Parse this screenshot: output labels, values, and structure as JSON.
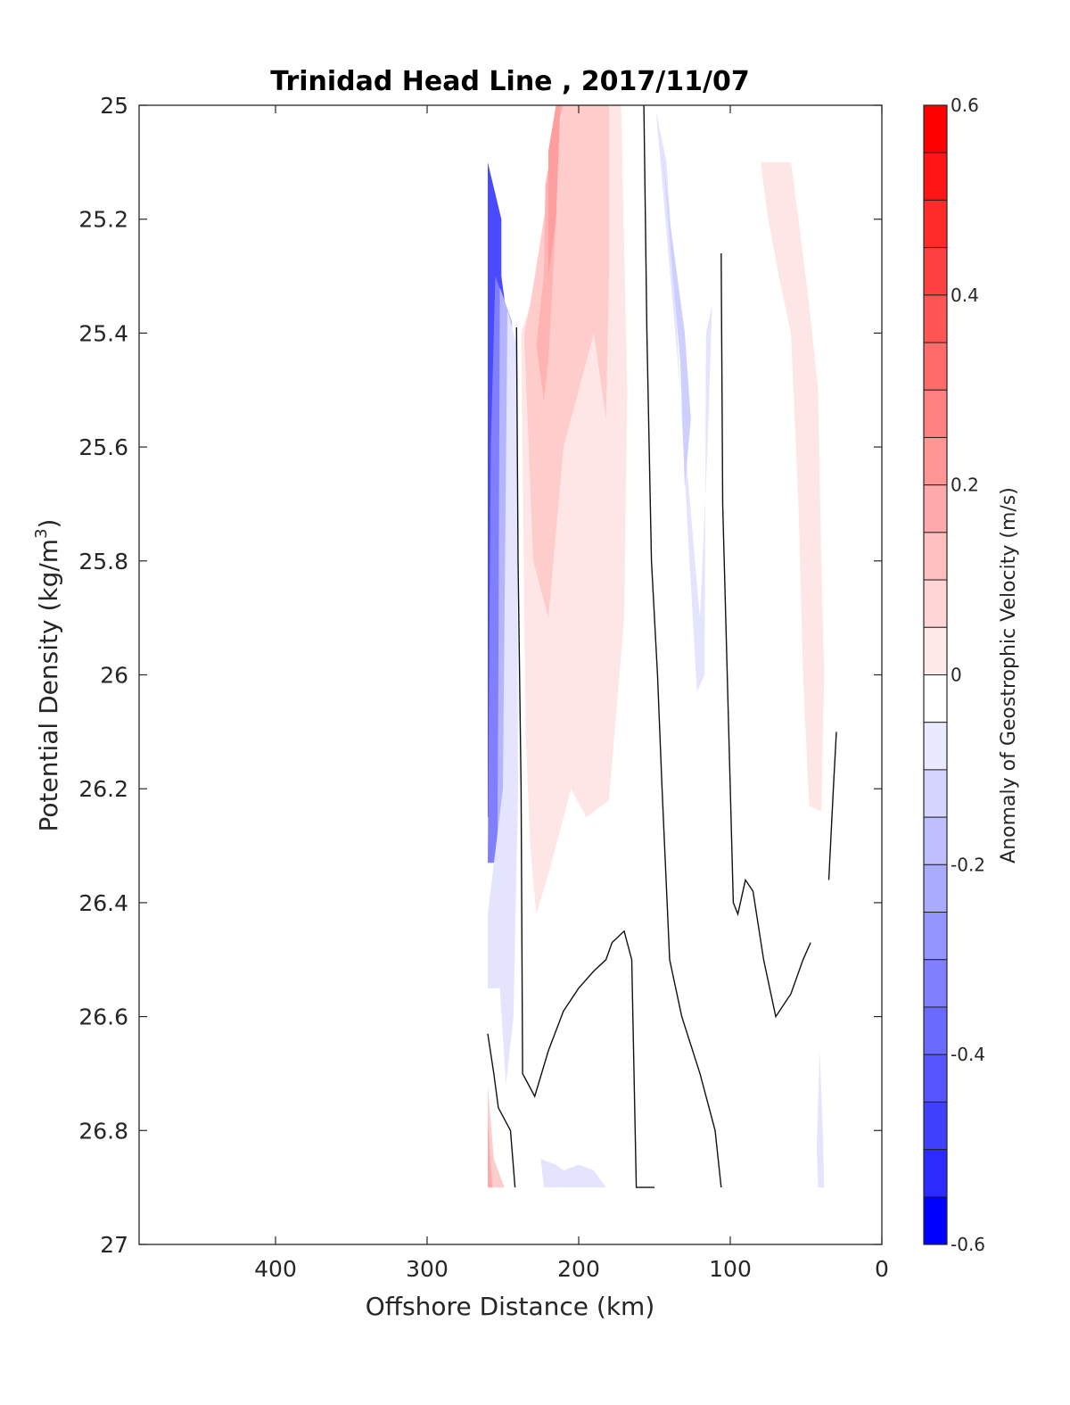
{
  "chart_data": {
    "type": "heatmap",
    "subtype": "filled-contour section",
    "title": "Trinidad Head Line , 2017/11/07",
    "xlabel": "Offshore Distance (km)",
    "ylabel": "Potential Density (kg/m^3)",
    "ylabel_main": "Potential Density (kg/m",
    "ylabel_sup": "3",
    "ylabel_close": ")",
    "xlim": [
      490,
      0
    ],
    "x_reversed": true,
    "ylim": [
      25,
      27
    ],
    "y_reversed": true,
    "xticks": [
      400,
      300,
      200,
      100,
      0
    ],
    "xtick_labels": [
      "400",
      "300",
      "200",
      "100",
      "0"
    ],
    "yticks": [
      25,
      25.2,
      25.4,
      25.6,
      25.8,
      26,
      26.2,
      26.4,
      26.6,
      26.8,
      27
    ],
    "ytick_labels": [
      "25",
      "25.2",
      "25.4",
      "25.6",
      "25.8",
      "26",
      "26.2",
      "26.4",
      "26.6",
      "26.8",
      "27"
    ],
    "grid": false,
    "colorbar": {
      "label": "Anomaly of Geostrophic Velocity (m/s)",
      "range": [
        -0.6,
        0.6
      ],
      "step": 0.05,
      "ticks": [
        0.6,
        0.4,
        0.2,
        0,
        -0.2,
        -0.4,
        -0.6
      ],
      "tick_labels": [
        "0.6",
        "0.4",
        "0.2",
        "0",
        "-0.2",
        "-0.4",
        "-0.6"
      ],
      "placement": "right",
      "levels": [
        {
          "from": 0.55,
          "to": 0.6,
          "color": "#ff0000"
        },
        {
          "from": 0.5,
          "to": 0.55,
          "color": "#ff1515"
        },
        {
          "from": 0.45,
          "to": 0.5,
          "color": "#ff2b2b"
        },
        {
          "from": 0.4,
          "to": 0.45,
          "color": "#ff4040"
        },
        {
          "from": 0.35,
          "to": 0.4,
          "color": "#ff5555"
        },
        {
          "from": 0.3,
          "to": 0.35,
          "color": "#ff6a6a"
        },
        {
          "from": 0.25,
          "to": 0.3,
          "color": "#ff8080"
        },
        {
          "from": 0.2,
          "to": 0.25,
          "color": "#ff9595"
        },
        {
          "from": 0.15,
          "to": 0.2,
          "color": "#ffaaaa"
        },
        {
          "from": 0.1,
          "to": 0.15,
          "color": "#ffbfbf"
        },
        {
          "from": 0.05,
          "to": 0.1,
          "color": "#ffd5d5"
        },
        {
          "from": 0.0,
          "to": 0.05,
          "color": "#ffeaea"
        },
        {
          "from": -0.0,
          "to": 0.0,
          "color": "#ffffff"
        },
        {
          "from": -0.05,
          "to": 0.0,
          "color": "#ffffff"
        },
        {
          "from": -0.1,
          "to": -0.05,
          "color": "#eaeaff"
        },
        {
          "from": -0.15,
          "to": -0.1,
          "color": "#d5d5ff"
        },
        {
          "from": -0.2,
          "to": -0.15,
          "color": "#bfbfff"
        },
        {
          "from": -0.25,
          "to": -0.2,
          "color": "#aaaaff"
        },
        {
          "from": -0.3,
          "to": -0.25,
          "color": "#9595ff"
        },
        {
          "from": -0.35,
          "to": -0.3,
          "color": "#8080ff"
        },
        {
          "from": -0.4,
          "to": -0.35,
          "color": "#6a6aff"
        },
        {
          "from": -0.45,
          "to": -0.4,
          "color": "#5555ff"
        },
        {
          "from": -0.5,
          "to": -0.45,
          "color": "#4040ff"
        },
        {
          "from": -0.55,
          "to": -0.5,
          "color": "#2b2bff"
        },
        {
          "from": -0.6,
          "to": -0.55,
          "color": "#0000ff"
        }
      ]
    },
    "regions": [
      {
        "name": "blue-core-offshore",
        "value": -0.45,
        "color": "#4a4aff",
        "points": [
          [
            260,
            25.1
          ],
          [
            251,
            25.2
          ],
          [
            251,
            25.3
          ],
          [
            247,
            25.38
          ],
          [
            250,
            25.8
          ],
          [
            255,
            26.2
          ],
          [
            258,
            26.25
          ],
          [
            260,
            26.25
          ]
        ]
      },
      {
        "name": "blue-band-2",
        "value": -0.3,
        "color": "#8080ff",
        "points": [
          [
            255,
            25.3
          ],
          [
            247,
            25.36
          ],
          [
            244,
            25.45
          ],
          [
            246,
            25.9
          ],
          [
            250,
            26.33
          ],
          [
            260,
            26.33
          ],
          [
            258,
            25.6
          ]
        ]
      },
      {
        "name": "blue-band-3",
        "value": -0.2,
        "color": "#b5b5ff",
        "points": [
          [
            252,
            25.32
          ],
          [
            244,
            25.38
          ],
          [
            243,
            25.7
          ],
          [
            244,
            26.3
          ],
          [
            249,
            26.52
          ],
          [
            254,
            26.5
          ],
          [
            253,
            26.0
          ]
        ]
      },
      {
        "name": "blue-band-4",
        "value": -0.08,
        "color": "#e4e4ff",
        "points": [
          [
            247,
            25.36
          ],
          [
            241,
            25.42
          ],
          [
            240,
            26.2
          ],
          [
            243,
            26.6
          ],
          [
            248,
            26.72
          ],
          [
            252,
            26.55
          ],
          [
            260,
            26.55
          ],
          [
            260,
            26.42
          ],
          [
            250,
            26.2
          ]
        ]
      },
      {
        "name": "red-outer",
        "value": 0.05,
        "color": "#ffe6e6",
        "points": [
          [
            232,
            25.35
          ],
          [
            238,
            25.4
          ],
          [
            235,
            26.1
          ],
          [
            232,
            26.3
          ],
          [
            228,
            26.42
          ],
          [
            220,
            26.35
          ],
          [
            205,
            26.2
          ],
          [
            195,
            26.25
          ],
          [
            180,
            26.22
          ],
          [
            170,
            25.9
          ],
          [
            168,
            25.5
          ],
          [
            172,
            25.0
          ],
          [
            205,
            25.0
          ],
          [
            215,
            25.0
          ],
          [
            220,
            25.2
          ]
        ]
      },
      {
        "name": "red-mid",
        "value": 0.1,
        "color": "#ffcccc",
        "points": [
          [
            232,
            25.35
          ],
          [
            236,
            25.4
          ],
          [
            230,
            25.8
          ],
          [
            220,
            25.9
          ],
          [
            210,
            25.6
          ],
          [
            200,
            25.5
          ],
          [
            190,
            25.4
          ],
          [
            182,
            25.55
          ],
          [
            180,
            25.3
          ],
          [
            180,
            25.0
          ],
          [
            210,
            25.0
          ],
          [
            220,
            25.15
          ],
          [
            226,
            25.25
          ]
        ]
      },
      {
        "name": "red-inner",
        "value": 0.15,
        "color": "#ffb3b3",
        "points": [
          [
            218,
            25.08
          ],
          [
            222,
            25.14
          ],
          [
            223,
            25.3
          ],
          [
            228,
            25.42
          ],
          [
            223,
            25.52
          ],
          [
            220,
            25.45
          ],
          [
            215,
            25.2
          ],
          [
            213,
            25.0
          ],
          [
            210,
            25.0
          ]
        ]
      },
      {
        "name": "red-core",
        "value": 0.2,
        "color": "#ff9e9e",
        "points": [
          [
            215,
            25.0
          ],
          [
            220,
            25.08
          ],
          [
            220,
            25.3
          ],
          [
            215,
            25.2
          ],
          [
            212,
            25.0
          ]
        ]
      },
      {
        "name": "blue-nearshore-1",
        "value": -0.08,
        "color": "#e4e4ff",
        "points": [
          [
            149,
            25.01
          ],
          [
            142,
            25.1
          ],
          [
            135,
            25.4
          ],
          [
            128,
            25.75
          ],
          [
            122,
            26.03
          ],
          [
            117,
            26.0
          ],
          [
            116,
            25.4
          ],
          [
            112,
            25.35
          ],
          [
            115,
            25.6
          ],
          [
            120,
            25.9
          ]
        ]
      },
      {
        "name": "blue-nearshore-2",
        "value": -0.12,
        "color": "#cfcfff",
        "points": [
          [
            145,
            25.07
          ],
          [
            140,
            25.2
          ],
          [
            130,
            25.4
          ],
          [
            126,
            25.55
          ],
          [
            130,
            25.67
          ],
          [
            133,
            25.45
          ],
          [
            138,
            25.3
          ]
        ]
      },
      {
        "name": "red-nearshore",
        "value": 0.05,
        "color": "#ffe6e6",
        "points": [
          [
            80,
            25.1
          ],
          [
            60,
            25.1
          ],
          [
            55,
            25.2
          ],
          [
            48,
            25.35
          ],
          [
            42,
            25.5
          ],
          [
            40,
            25.8
          ],
          [
            38,
            26.0
          ],
          [
            40,
            26.24
          ],
          [
            48,
            26.23
          ],
          [
            52,
            26.0
          ],
          [
            55,
            25.7
          ],
          [
            60,
            25.4
          ],
          [
            68,
            25.3
          ],
          [
            75,
            25.2
          ]
        ]
      },
      {
        "name": "blue-deep-1",
        "value": -0.08,
        "color": "#e4e4ff",
        "points": [
          [
            225,
            26.85
          ],
          [
            215,
            26.86
          ],
          [
            210,
            26.87
          ],
          [
            200,
            26.86
          ],
          [
            190,
            26.87
          ],
          [
            182,
            26.9
          ],
          [
            223,
            26.9
          ]
        ]
      },
      {
        "name": "blue-deep-2",
        "value": -0.08,
        "color": "#e4e4ff",
        "points": [
          [
            41,
            26.66
          ],
          [
            43,
            26.83
          ],
          [
            42,
            26.9
          ],
          [
            38,
            26.9
          ],
          [
            39,
            26.8
          ]
        ]
      },
      {
        "name": "red-deep",
        "value": 0.1,
        "color": "#ffcccc",
        "points": [
          [
            260,
            26.72
          ],
          [
            256,
            26.85
          ],
          [
            249,
            26.9
          ],
          [
            260,
            26.9
          ]
        ]
      },
      {
        "name": "red-deep-2",
        "value": 0.2,
        "color": "#ffaaaa",
        "points": [
          [
            260,
            26.78
          ],
          [
            257,
            26.9
          ],
          [
            260,
            26.9
          ]
        ]
      }
    ],
    "zero_contours": [
      {
        "points": [
          [
            241,
            25.39
          ],
          [
            240,
            25.8
          ],
          [
            238,
            26.2
          ],
          [
            237,
            26.7
          ],
          [
            229,
            26.74
          ],
          [
            220,
            26.66
          ],
          [
            210,
            26.59
          ],
          [
            200,
            26.55
          ],
          [
            190,
            26.52
          ],
          [
            182,
            26.5
          ],
          [
            178,
            26.47
          ],
          [
            170,
            26.45
          ],
          [
            165,
            26.5
          ],
          [
            162,
            26.9
          ],
          [
            158,
            26.9
          ],
          [
            154,
            26.9
          ],
          [
            152,
            26.9
          ],
          [
            150,
            26.9
          ]
        ]
      },
      {
        "points": [
          [
            260,
            26.63
          ],
          [
            256,
            26.7
          ],
          [
            253,
            26.76
          ],
          [
            245,
            26.8
          ],
          [
            242,
            26.9
          ]
        ]
      },
      {
        "points": [
          [
            157,
            25.0
          ],
          [
            155,
            25.4
          ],
          [
            152,
            25.8
          ],
          [
            148,
            26.0
          ],
          [
            145,
            26.2
          ],
          [
            140,
            26.5
          ],
          [
            132,
            26.6
          ],
          [
            120,
            26.7
          ],
          [
            110,
            26.8
          ],
          [
            106,
            26.9
          ]
        ]
      },
      {
        "points": [
          [
            106,
            25.26
          ],
          [
            105,
            25.7
          ],
          [
            102,
            26.0
          ],
          [
            98,
            26.4
          ],
          [
            95,
            26.42
          ],
          [
            90,
            26.36
          ],
          [
            85,
            26.38
          ],
          [
            78,
            26.5
          ],
          [
            70,
            26.6
          ],
          [
            60,
            26.56
          ],
          [
            52,
            26.5
          ],
          [
            47,
            26.47
          ]
        ]
      },
      {
        "points": [
          [
            35,
            26.36
          ],
          [
            32,
            26.2
          ],
          [
            30,
            26.1
          ]
        ]
      }
    ]
  }
}
